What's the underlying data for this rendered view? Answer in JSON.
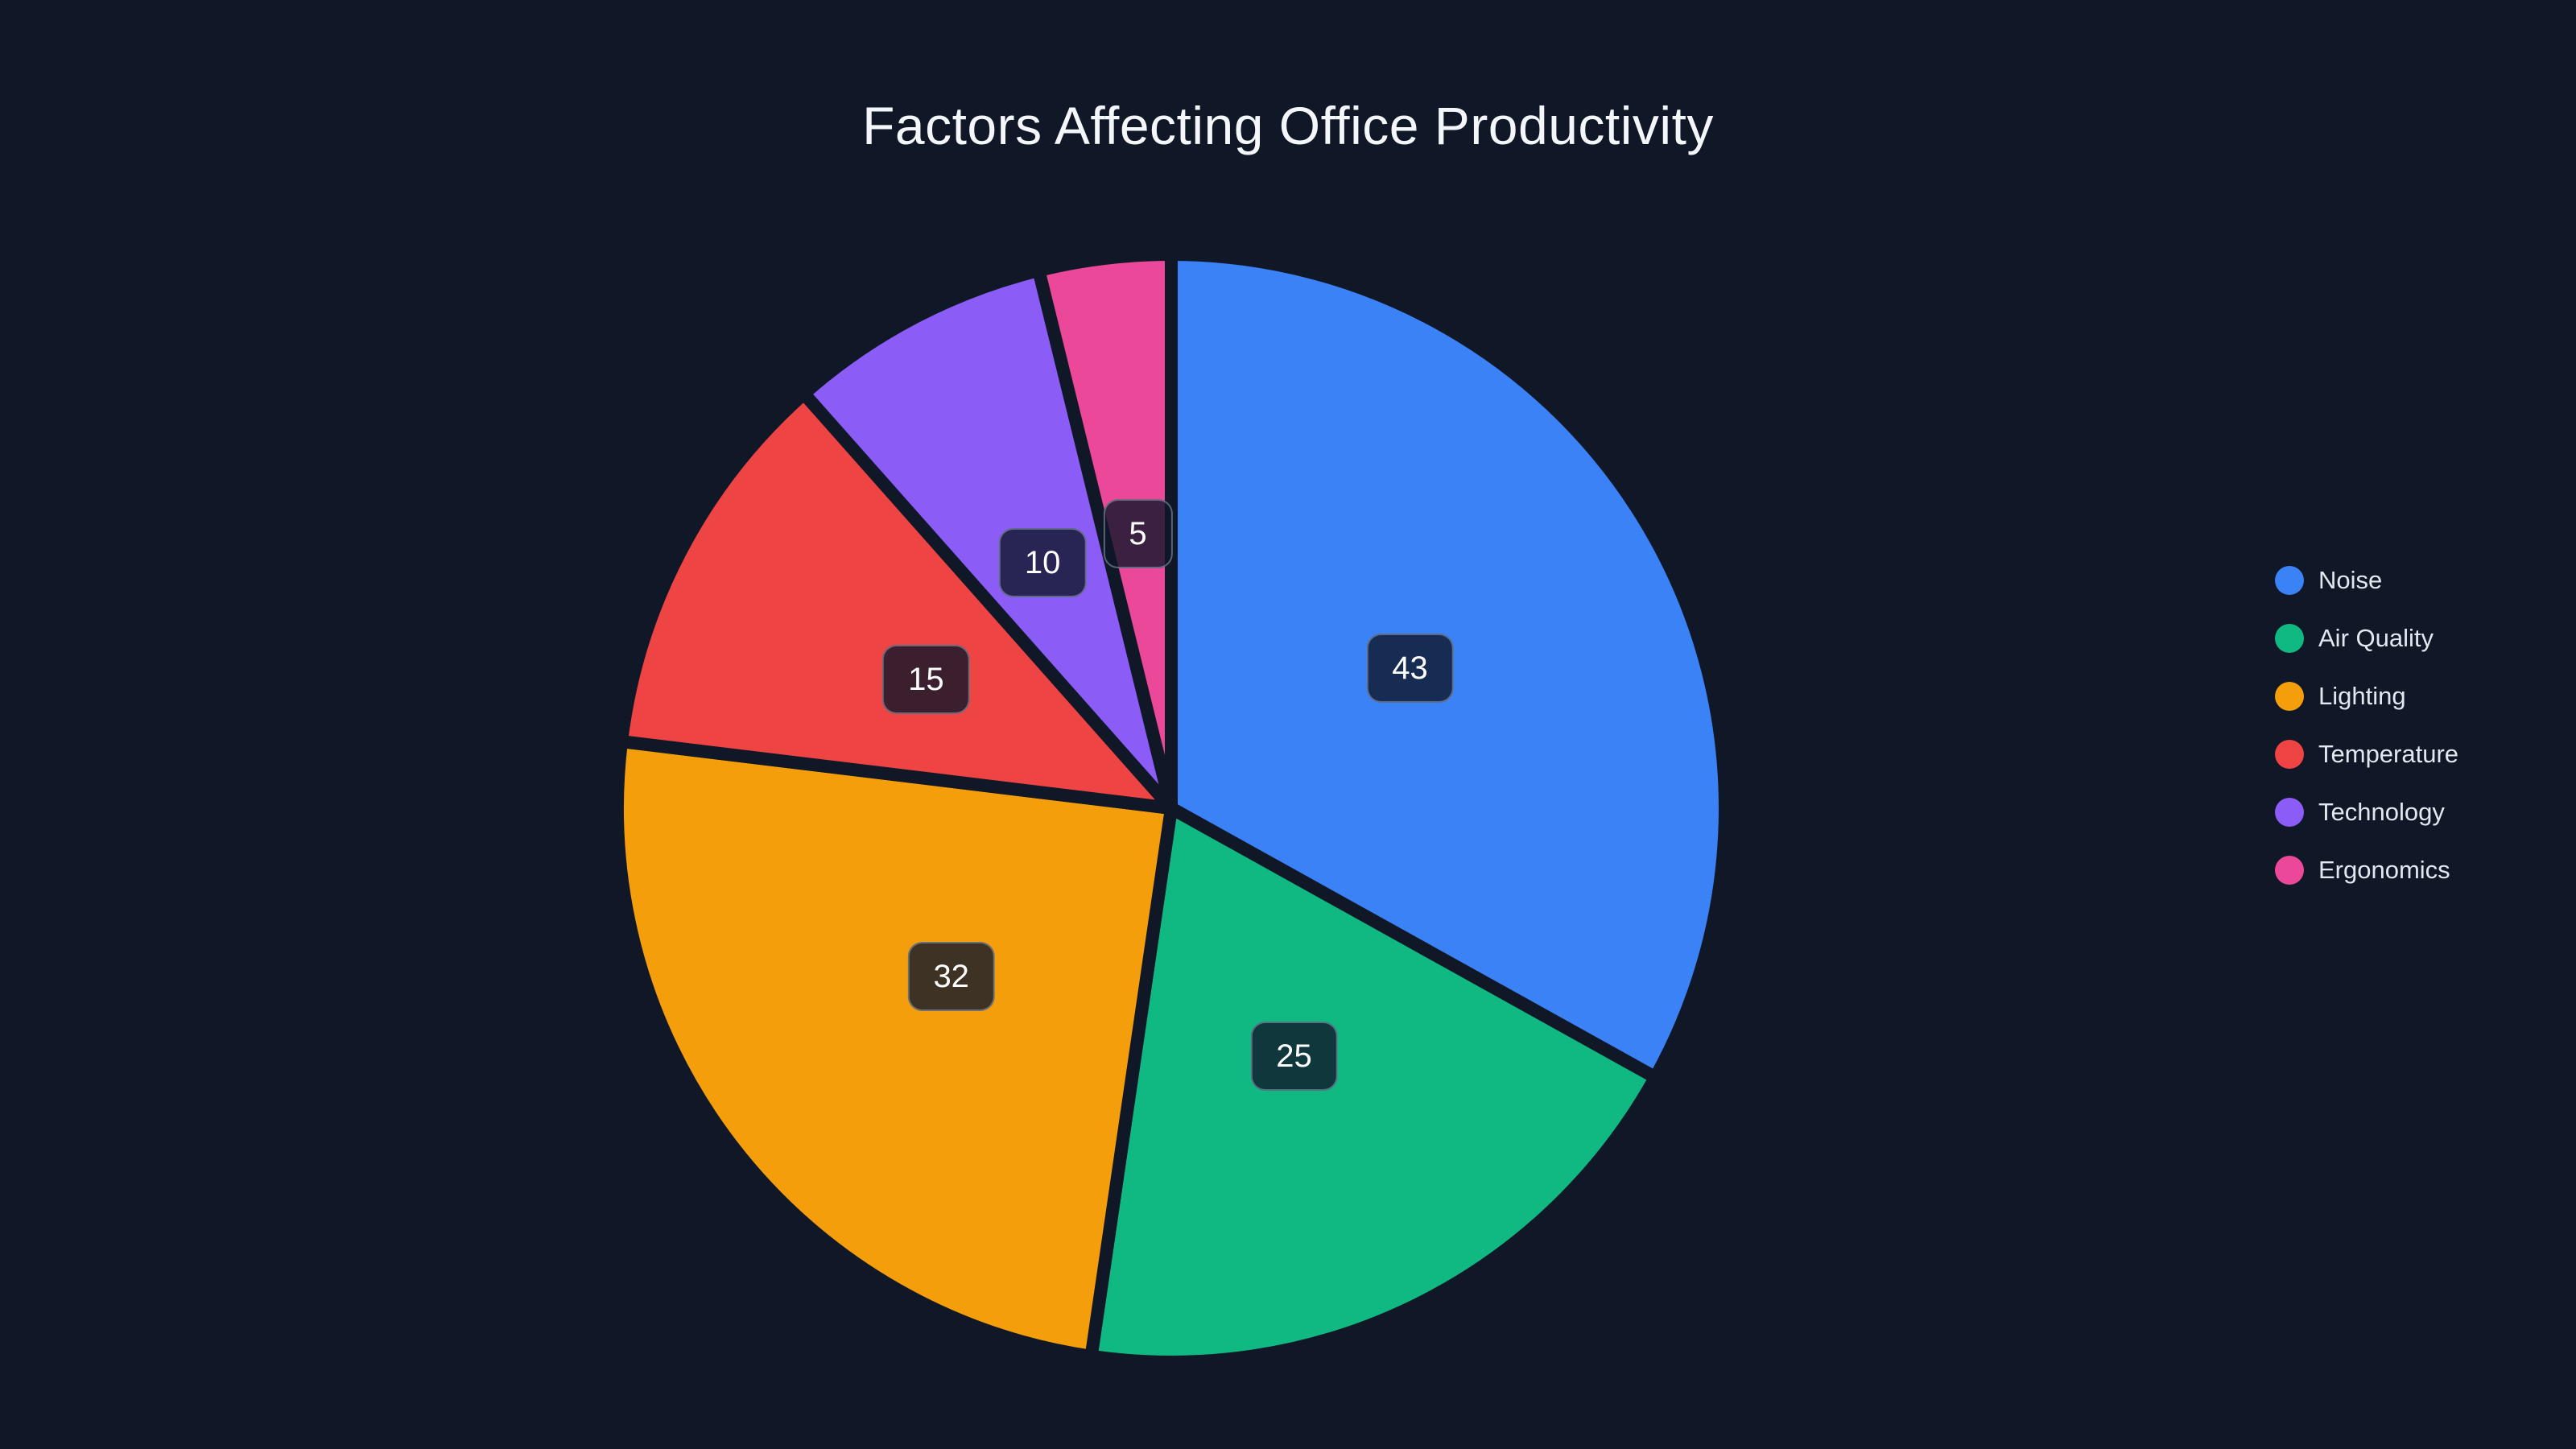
{
  "chart": {
    "title": "Factors Affecting Office Productivity"
  },
  "chart_data": {
    "type": "pie",
    "title": "Factors Affecting Office Productivity",
    "categories": [
      "Noise",
      "Air Quality",
      "Lighting",
      "Temperature",
      "Technology",
      "Ergonomics"
    ],
    "values": [
      43,
      25,
      32,
      15,
      10,
      5
    ],
    "colors": [
      "#3b82f6",
      "#10b981",
      "#f59e0b",
      "#ef4444",
      "#8b5cf6",
      "#ec4899"
    ],
    "start_angle_deg": 0,
    "direction": "clockwise",
    "legend_position": "right",
    "value_labels": "absolute values shown in dark rounded pills at mid-radius of each slice",
    "slice_gap": "thick separator lines in background color between slices"
  },
  "theme": {
    "background": "#101726",
    "title_color": "#f4f7fa",
    "legend_text_color": "#e2e8f0",
    "label_text_color": "#ffffff",
    "label_box_bg": "rgba(15,23,42,0.8)",
    "label_box_border": "rgba(148,163,184,0.55)",
    "slice_gap_color": "#101726"
  }
}
